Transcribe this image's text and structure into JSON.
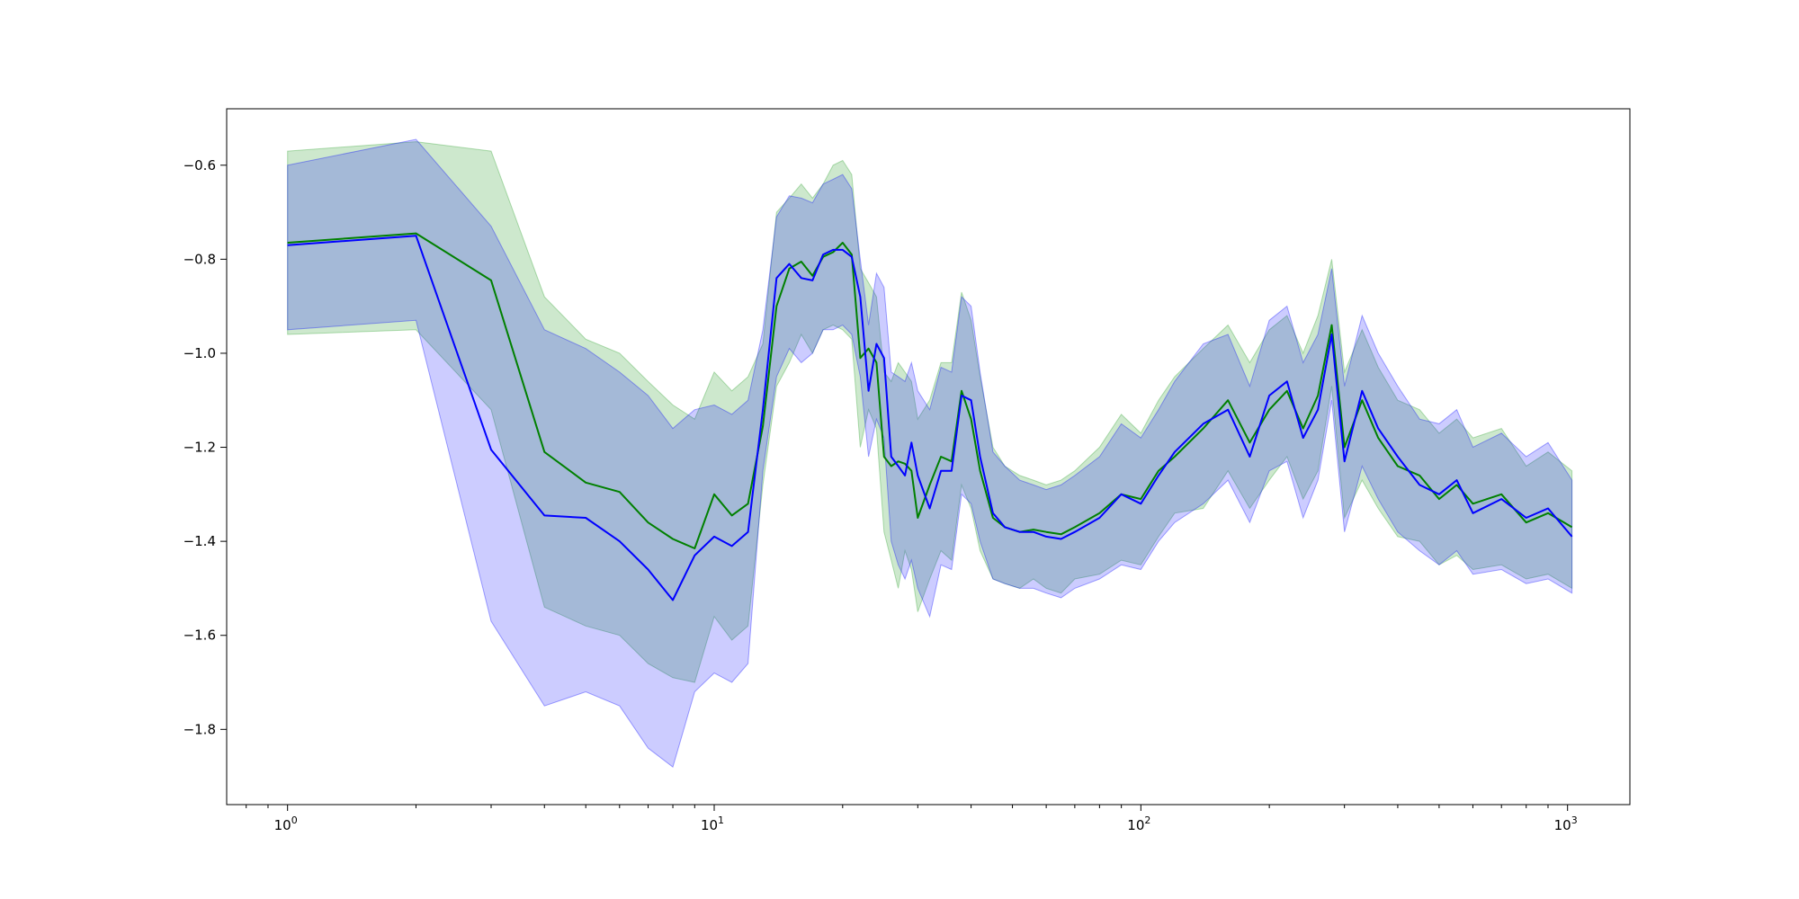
{
  "chart_data": {
    "type": "line",
    "title": "",
    "xlabel": "",
    "ylabel": "",
    "xscale": "log",
    "xlim": [
      0.72,
      1400
    ],
    "ylim": [
      -1.96,
      -0.48
    ],
    "grid": false,
    "legend": "none",
    "x_ticks": [
      {
        "value": 1,
        "base": "10",
        "exp": "0"
      },
      {
        "value": 10,
        "base": "10",
        "exp": "1"
      },
      {
        "value": 100,
        "base": "10",
        "exp": "2"
      },
      {
        "value": 1000,
        "base": "10",
        "exp": "3"
      }
    ],
    "y_ticks": [
      {
        "value": -0.6,
        "label": "−0.6"
      },
      {
        "value": -0.8,
        "label": "−0.8"
      },
      {
        "value": -1.0,
        "label": "−1.0"
      },
      {
        "value": -1.2,
        "label": "−1.2"
      },
      {
        "value": -1.4,
        "label": "−1.4"
      },
      {
        "value": -1.6,
        "label": "−1.6"
      },
      {
        "value": -1.8,
        "label": "−1.8"
      }
    ],
    "series": [
      {
        "color": "#008000",
        "band_color": "#2ca02c",
        "band_opacity": 0.24,
        "x": [
          1,
          2,
          3,
          4,
          5,
          6,
          7,
          8,
          9,
          10,
          11,
          12,
          13,
          14,
          15,
          16,
          17,
          18,
          19,
          20,
          21,
          22,
          23,
          24,
          25,
          26,
          27,
          28,
          29,
          30,
          32,
          34,
          36,
          38,
          40,
          42,
          45,
          48,
          52,
          56,
          60,
          65,
          70,
          80,
          90,
          100,
          110,
          120,
          140,
          160,
          180,
          200,
          220,
          240,
          260,
          280,
          300,
          330,
          360,
          400,
          450,
          500,
          550,
          600,
          700,
          800,
          900,
          1024
        ],
        "y": [
          -0.765,
          -0.745,
          -0.845,
          -1.21,
          -1.275,
          -1.295,
          -1.36,
          -1.395,
          -1.415,
          -1.3,
          -1.345,
          -1.32,
          -1.155,
          -0.9,
          -0.82,
          -0.805,
          -0.835,
          -0.795,
          -0.785,
          -0.765,
          -0.79,
          -1.01,
          -0.99,
          -1.02,
          -1.22,
          -1.24,
          -1.23,
          -1.235,
          -1.25,
          -1.35,
          -1.28,
          -1.22,
          -1.23,
          -1.08,
          -1.14,
          -1.25,
          -1.35,
          -1.37,
          -1.38,
          -1.375,
          -1.38,
          -1.385,
          -1.37,
          -1.34,
          -1.3,
          -1.31,
          -1.25,
          -1.22,
          -1.16,
          -1.1,
          -1.19,
          -1.12,
          -1.08,
          -1.16,
          -1.09,
          -0.94,
          -1.2,
          -1.1,
          -1.18,
          -1.24,
          -1.26,
          -1.31,
          -1.28,
          -1.32,
          -1.3,
          -1.36,
          -1.34,
          -1.37
        ],
        "lower": [
          -0.96,
          -0.95,
          -1.12,
          -1.54,
          -1.58,
          -1.6,
          -1.66,
          -1.69,
          -1.7,
          -1.56,
          -1.61,
          -1.58,
          -1.28,
          -1.07,
          -1.02,
          -0.96,
          -1.0,
          -0.95,
          -0.94,
          -0.95,
          -0.97,
          -1.2,
          -1.12,
          -1.16,
          -1.38,
          -1.44,
          -1.5,
          -1.42,
          -1.46,
          -1.55,
          -1.48,
          -1.42,
          -1.44,
          -1.28,
          -1.33,
          -1.42,
          -1.48,
          -1.49,
          -1.5,
          -1.48,
          -1.5,
          -1.51,
          -1.48,
          -1.47,
          -1.44,
          -1.45,
          -1.39,
          -1.34,
          -1.33,
          -1.25,
          -1.33,
          -1.27,
          -1.22,
          -1.31,
          -1.25,
          -1.07,
          -1.35,
          -1.27,
          -1.33,
          -1.39,
          -1.4,
          -1.45,
          -1.43,
          -1.46,
          -1.45,
          -1.48,
          -1.47,
          -1.5
        ],
        "upper": [
          -0.57,
          -0.55,
          -0.57,
          -0.88,
          -0.97,
          -1.0,
          -1.06,
          -1.11,
          -1.14,
          -1.04,
          -1.08,
          -1.05,
          -0.98,
          -0.7,
          -0.67,
          -0.64,
          -0.67,
          -0.64,
          -0.6,
          -0.59,
          -0.62,
          -0.82,
          -0.85,
          -0.88,
          -1.04,
          -1.06,
          -1.02,
          -1.04,
          -1.06,
          -1.14,
          -1.1,
          -1.02,
          -1.02,
          -0.87,
          -0.93,
          -1.05,
          -1.2,
          -1.24,
          -1.26,
          -1.27,
          -1.28,
          -1.27,
          -1.25,
          -1.2,
          -1.13,
          -1.17,
          -1.1,
          -1.05,
          -0.99,
          -0.94,
          -1.02,
          -0.95,
          -0.92,
          -1.0,
          -0.92,
          -0.8,
          -1.04,
          -0.95,
          -1.03,
          -1.1,
          -1.12,
          -1.17,
          -1.14,
          -1.18,
          -1.16,
          -1.24,
          -1.21,
          -1.25
        ]
      },
      {
        "color": "#0000ff",
        "band_color": "#0000ff",
        "band_opacity": 0.2,
        "x": [
          1,
          2,
          3,
          4,
          5,
          6,
          7,
          8,
          9,
          10,
          11,
          12,
          13,
          14,
          15,
          16,
          17,
          18,
          19,
          20,
          21,
          22,
          23,
          24,
          25,
          26,
          27,
          28,
          29,
          30,
          32,
          34,
          36,
          38,
          40,
          42,
          45,
          48,
          52,
          56,
          60,
          65,
          70,
          80,
          90,
          100,
          110,
          120,
          140,
          160,
          180,
          200,
          220,
          240,
          260,
          280,
          300,
          330,
          360,
          400,
          450,
          500,
          550,
          600,
          700,
          800,
          900,
          1024
        ],
        "y": [
          -0.77,
          -0.75,
          -1.205,
          -1.345,
          -1.35,
          -1.4,
          -1.46,
          -1.525,
          -1.43,
          -1.39,
          -1.41,
          -1.38,
          -1.12,
          -0.84,
          -0.81,
          -0.84,
          -0.845,
          -0.79,
          -0.78,
          -0.78,
          -0.795,
          -0.88,
          -1.08,
          -0.98,
          -1.01,
          -1.22,
          -1.24,
          -1.26,
          -1.19,
          -1.26,
          -1.33,
          -1.25,
          -1.25,
          -1.09,
          -1.1,
          -1.22,
          -1.34,
          -1.37,
          -1.38,
          -1.38,
          -1.39,
          -1.395,
          -1.38,
          -1.35,
          -1.3,
          -1.32,
          -1.26,
          -1.21,
          -1.15,
          -1.12,
          -1.22,
          -1.09,
          -1.06,
          -1.18,
          -1.12,
          -0.96,
          -1.23,
          -1.08,
          -1.16,
          -1.22,
          -1.28,
          -1.3,
          -1.27,
          -1.34,
          -1.31,
          -1.35,
          -1.33,
          -1.39
        ],
        "lower": [
          -0.95,
          -0.93,
          -1.57,
          -1.75,
          -1.72,
          -1.75,
          -1.84,
          -1.88,
          -1.72,
          -1.68,
          -1.7,
          -1.66,
          -1.25,
          -1.05,
          -0.99,
          -1.02,
          -1.0,
          -0.95,
          -0.95,
          -0.94,
          -0.96,
          -1.05,
          -1.22,
          -1.14,
          -1.18,
          -1.4,
          -1.45,
          -1.48,
          -1.44,
          -1.5,
          -1.56,
          -1.45,
          -1.46,
          -1.3,
          -1.32,
          -1.4,
          -1.48,
          -1.49,
          -1.5,
          -1.5,
          -1.51,
          -1.52,
          -1.5,
          -1.48,
          -1.45,
          -1.46,
          -1.4,
          -1.36,
          -1.32,
          -1.27,
          -1.36,
          -1.25,
          -1.23,
          -1.35,
          -1.27,
          -1.1,
          -1.38,
          -1.24,
          -1.31,
          -1.38,
          -1.42,
          -1.45,
          -1.42,
          -1.47,
          -1.46,
          -1.49,
          -1.48,
          -1.51
        ],
        "upper": [
          -0.6,
          -0.545,
          -0.73,
          -0.95,
          -0.99,
          -1.04,
          -1.09,
          -1.16,
          -1.12,
          -1.11,
          -1.13,
          -1.1,
          -0.95,
          -0.71,
          -0.665,
          -0.67,
          -0.68,
          -0.64,
          -0.63,
          -0.62,
          -0.65,
          -0.8,
          -0.94,
          -0.83,
          -0.86,
          -1.04,
          -1.05,
          -1.06,
          -1.02,
          -1.08,
          -1.12,
          -1.03,
          -1.04,
          -0.88,
          -0.9,
          -1.04,
          -1.21,
          -1.24,
          -1.27,
          -1.28,
          -1.29,
          -1.28,
          -1.26,
          -1.22,
          -1.15,
          -1.18,
          -1.12,
          -1.06,
          -0.98,
          -0.96,
          -1.07,
          -0.93,
          -0.9,
          -1.02,
          -0.96,
          -0.82,
          -1.07,
          -0.92,
          -1.0,
          -1.07,
          -1.14,
          -1.15,
          -1.12,
          -1.2,
          -1.17,
          -1.22,
          -1.19,
          -1.27
        ]
      }
    ]
  }
}
